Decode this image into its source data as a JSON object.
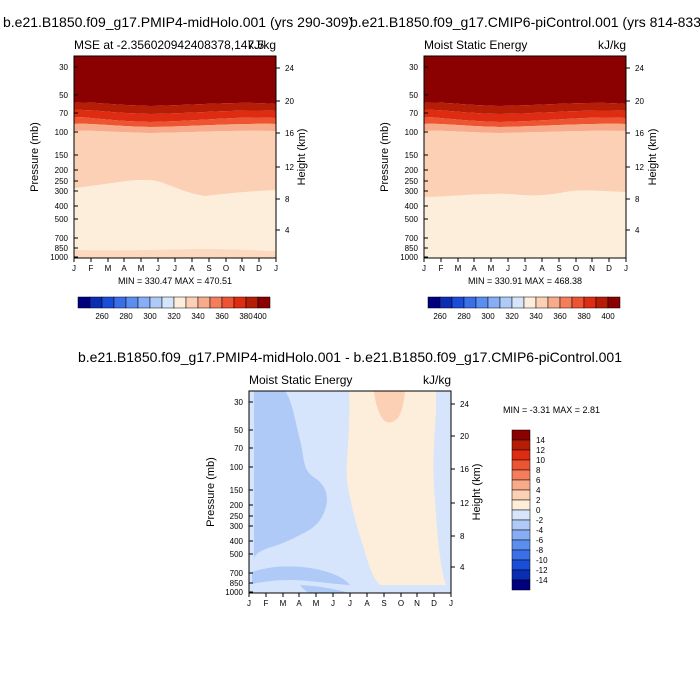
{
  "chart_data": [
    {
      "type": "contour",
      "title": "b.e21.B1850.f09_g17.PMIP4-midHolo.001 (yrs 290-309)",
      "left_label": "MSE at -2.356020942408378,147.5",
      "right_label": "kJ/kg",
      "ylabel": "Pressure (mb)",
      "ylabel_right": "Height (km)",
      "x_ticks": [
        "J",
        "F",
        "M",
        "A",
        "M",
        "J",
        "J",
        "A",
        "S",
        "O",
        "N",
        "D",
        "J"
      ],
      "y_ticks": [
        30,
        50,
        70,
        100,
        150,
        200,
        250,
        300,
        400,
        500,
        700,
        850,
        1000
      ],
      "height_ticks": [
        4,
        8,
        12,
        16,
        20,
        24
      ],
      "stats": "MIN = 330.47  MAX = 470.51",
      "colorbar_labels": [
        "260",
        "280",
        "300",
        "320",
        "340",
        "360",
        "380",
        "400"
      ],
      "colorbar_colors": [
        "#00007f",
        "#0a2db4",
        "#1a4ed8",
        "#3a6fe8",
        "#5a8ff0",
        "#86adf5",
        "#b0caf8",
        "#d6e5fb",
        "#fdeedc",
        "#fcd0b4",
        "#f8ab8a",
        "#f47e5c",
        "#ed5432",
        "#dd2c12",
        "#b51d07",
        "#8b0000"
      ]
    },
    {
      "type": "contour",
      "title": "b.e21.B1850.f09_g17.CMIP6-piControl.001 (yrs 814-833)",
      "left_label": "Moist Static Energy",
      "right_label": "kJ/kg",
      "ylabel": "Pressure (mb)",
      "ylabel_right": "Height (km)",
      "x_ticks": [
        "J",
        "F",
        "M",
        "A",
        "M",
        "J",
        "J",
        "A",
        "S",
        "O",
        "N",
        "D",
        "J"
      ],
      "y_ticks": [
        30,
        50,
        70,
        100,
        150,
        200,
        250,
        300,
        400,
        500,
        700,
        850,
        1000
      ],
      "height_ticks": [
        4,
        8,
        12,
        16,
        20,
        24
      ],
      "stats": "MIN = 330.91  MAX = 468.38",
      "colorbar_labels": [
        "260",
        "280",
        "300",
        "320",
        "340",
        "360",
        "380",
        "400"
      ]
    },
    {
      "type": "contour",
      "title": "b.e21.B1850.f09_g17.PMIP4-midHolo.001 - b.e21.B1850.f09_g17.CMIP6-piControl.001",
      "left_label": "Moist Static Energy",
      "right_label": "kJ/kg",
      "ylabel": "Pressure (mb)",
      "ylabel_right": "Height (km)",
      "x_ticks": [
        "J",
        "F",
        "M",
        "A",
        "M",
        "J",
        "J",
        "A",
        "S",
        "O",
        "N",
        "D",
        "J"
      ],
      "y_ticks": [
        30,
        50,
        70,
        100,
        150,
        200,
        250,
        300,
        400,
        500,
        700,
        850,
        1000
      ],
      "height_ticks": [
        4,
        8,
        12,
        16,
        20,
        24
      ],
      "stats": "MIN =  -3.31 MAX =   2.81",
      "colorbar_labels": [
        "14",
        "12",
        "10",
        "8",
        "6",
        "4",
        "2",
        "0",
        "-2",
        "-4",
        "-6",
        "-8",
        "-10",
        "-12",
        "-14"
      ],
      "colorbar_colors": [
        "#8b0000",
        "#b51d07",
        "#dd2c12",
        "#ed5432",
        "#f47e5c",
        "#f8ab8a",
        "#fcd0b4",
        "#fdeedc",
        "#d6e5fb",
        "#b0caf8",
        "#86adf5",
        "#5a8ff0",
        "#3a6fe8",
        "#1a4ed8",
        "#0a2db4",
        "#00007f"
      ]
    }
  ]
}
